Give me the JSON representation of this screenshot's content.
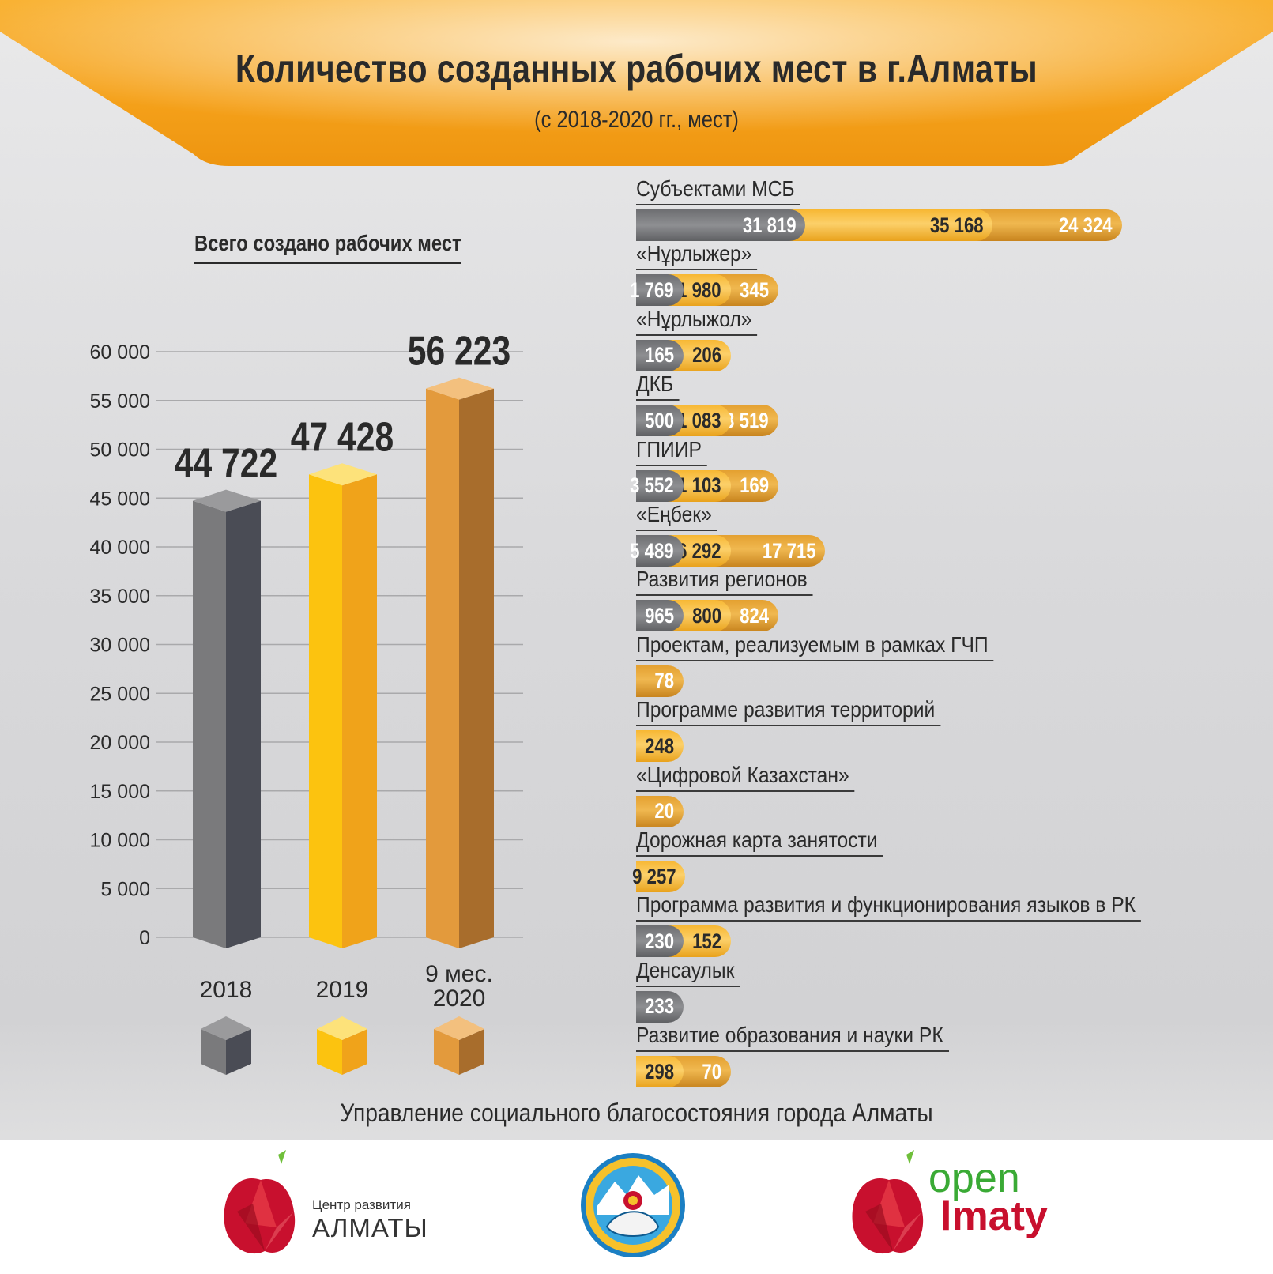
{
  "title": "Количество созданных рабочих мест в г.Алматы",
  "subtitle": "(с 2018-2020 гг., мест)",
  "colors": {
    "banner": "#f5a623",
    "y2018": "#6d6e71",
    "y2019": "#fcc30f",
    "y2020": "#e39a3c"
  },
  "chart_data": [
    {
      "type": "bar",
      "title": "Всего создано рабочих мест",
      "categories": [
        "2018",
        "2019",
        "9 мес. 2020"
      ],
      "values": [
        44722,
        47428,
        56223
      ],
      "value_labels": [
        "44 722",
        "47 428",
        "56 223"
      ],
      "ylim": [
        0,
        60000
      ],
      "yticks": [
        "0",
        "5 000",
        "10 000",
        "15 000",
        "20 000",
        "25 000",
        "30 000",
        "35 000",
        "40 000",
        "45 000",
        "50 000",
        "55 000",
        "60 000"
      ],
      "grid": true
    },
    {
      "type": "bar",
      "stacked": true,
      "orientation": "horizontal",
      "series_names": [
        "2018",
        "2019",
        "9 мес. 2020"
      ],
      "categories": [
        {
          "label": "Субъектами МСБ",
          "values": [
            31819,
            35168,
            24324
          ],
          "labels": [
            "31 819",
            "35 168",
            "24 324"
          ]
        },
        {
          "label": "«Нұрлыжер»",
          "values": [
            1769,
            1980,
            345
          ],
          "labels": [
            "1 769",
            "1 980",
            "345"
          ]
        },
        {
          "label": "«Нұрлыжол»",
          "values": [
            165,
            206,
            null
          ],
          "labels": [
            "165",
            "206",
            ""
          ]
        },
        {
          "label": "ДКБ",
          "values": [
            500,
            1083,
            3519
          ],
          "labels": [
            "500",
            "1 083",
            "3 519"
          ]
        },
        {
          "label": "ГПИИР",
          "values": [
            3552,
            1103,
            169
          ],
          "labels": [
            "3 552",
            "1 103",
            "169"
          ]
        },
        {
          "label": "«Еңбек»",
          "values": [
            5489,
            6292,
            17715
          ],
          "labels": [
            "5 489",
            "6 292",
            "17 715"
          ]
        },
        {
          "label": "Развития регионов",
          "values": [
            965,
            800,
            824
          ],
          "labels": [
            "965",
            "800",
            "824"
          ]
        },
        {
          "label": "Проектам, реализуемым в рамках ГЧП",
          "values": [
            null,
            null,
            78
          ],
          "labels": [
            "",
            "",
            "78"
          ]
        },
        {
          "label": "Программе развития территорий",
          "values": [
            null,
            248,
            null
          ],
          "labels": [
            "",
            "248",
            ""
          ]
        },
        {
          "label": "«Цифровой Казахстан»",
          "values": [
            null,
            null,
            20
          ],
          "labels": [
            "",
            "",
            "20"
          ]
        },
        {
          "label": "Дорожная карта занятости",
          "values": [
            null,
            9257,
            null
          ],
          "labels": [
            "",
            "9 257",
            ""
          ]
        },
        {
          "label": "Программа развития и функционирования языков в РК",
          "values": [
            230,
            152,
            null
          ],
          "labels": [
            "230",
            "152",
            ""
          ]
        },
        {
          "label": "Денсаулык",
          "values": [
            233,
            null,
            null
          ],
          "labels": [
            "233",
            "",
            ""
          ]
        },
        {
          "label": "Развитие образования и науки РК",
          "values": [
            null,
            298,
            70
          ],
          "labels": [
            "",
            "298",
            "70"
          ]
        }
      ]
    }
  ],
  "source": "Управление социального благосостояния города Алматы",
  "footer": {
    "logo1_line1": "Центр развития",
    "logo1_line2": "АЛМАТЫ",
    "logo2_icon": "almaty-emblem-icon",
    "logo3_line1": "open",
    "logo3_line2": "lmaty"
  }
}
